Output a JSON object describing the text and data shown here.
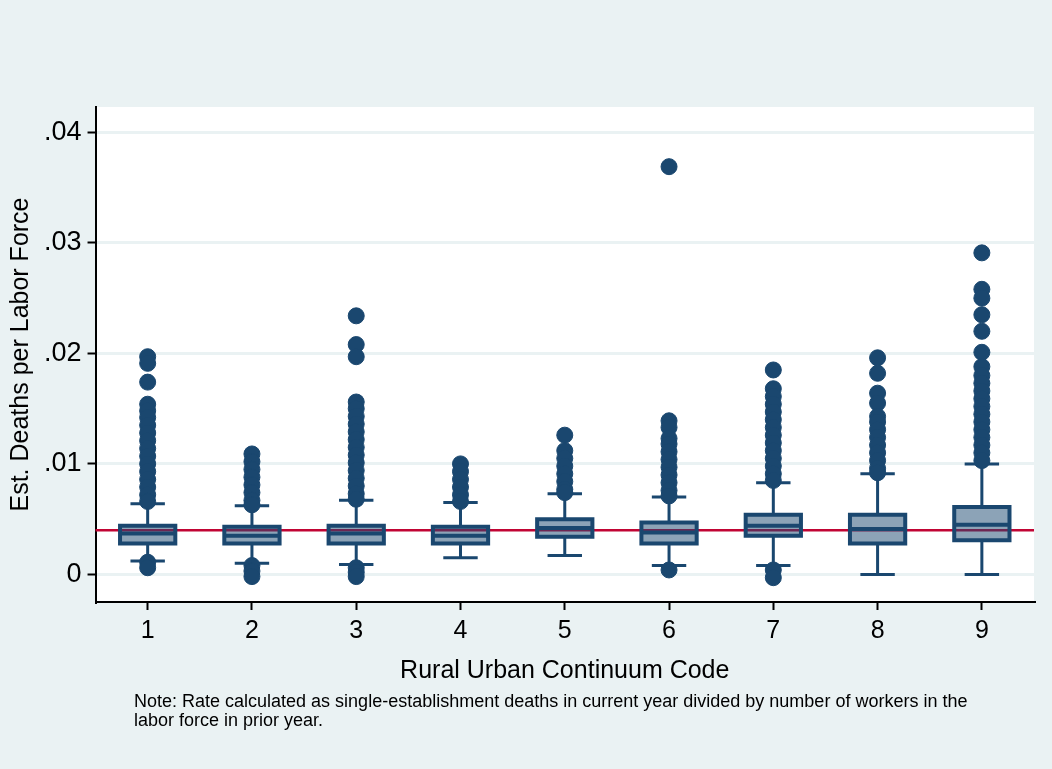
{
  "chart_data": {
    "type": "box",
    "xlabel": "Rural Urban Continuum Code",
    "ylabel": "Est. Deaths per Labor Force",
    "categories": [
      "1",
      "2",
      "3",
      "4",
      "5",
      "6",
      "7",
      "8",
      "9"
    ],
    "color": "#1a476f",
    "boxes": [
      {
        "low": 0.0012,
        "q1": 0.0028,
        "median": 0.0037,
        "q3": 0.0044,
        "high": 0.0064,
        "outliers": [
          0.0197,
          0.0191,
          0.0174,
          0.0154,
          0.0148,
          0.0142,
          0.0135,
          0.0128,
          0.0121,
          0.0114,
          0.0107,
          0.01,
          0.0093,
          0.0086,
          0.0079,
          0.0072,
          0.0066,
          0.0011,
          0.0006
        ]
      },
      {
        "low": 0.001,
        "q1": 0.0028,
        "median": 0.0035,
        "q3": 0.0043,
        "high": 0.0062,
        "outliers": [
          0.0109,
          0.0102,
          0.0095,
          0.0088,
          0.0081,
          0.0074,
          0.0067,
          0.0063,
          0.0008,
          0.0003,
          -0.0002
        ]
      },
      {
        "low": 0.0009,
        "q1": 0.0028,
        "median": 0.0037,
        "q3": 0.0044,
        "high": 0.0067,
        "outliers": [
          0.0234,
          0.0208,
          0.0197,
          0.0156,
          0.015,
          0.0143,
          0.0136,
          0.0129,
          0.0122,
          0.0115,
          0.0108,
          0.0101,
          0.0094,
          0.0087,
          0.008,
          0.0073,
          0.0068,
          0.0006,
          0.0002,
          -0.0002
        ]
      },
      {
        "low": 0.0015,
        "q1": 0.0028,
        "median": 0.0035,
        "q3": 0.0043,
        "high": 0.0065,
        "outliers": [
          0.01,
          0.0093,
          0.0086,
          0.0079,
          0.0072,
          0.0066
        ]
      },
      {
        "low": 0.0017,
        "q1": 0.0034,
        "median": 0.0042,
        "q3": 0.005,
        "high": 0.0073,
        "outliers": [
          0.0126,
          0.0112,
          0.0105,
          0.0098,
          0.0091,
          0.0084,
          0.0077,
          0.0074
        ]
      },
      {
        "low": 0.0008,
        "q1": 0.0028,
        "median": 0.0038,
        "q3": 0.0047,
        "high": 0.007,
        "outliers": [
          0.0369,
          0.0139,
          0.0133,
          0.0123,
          0.0118,
          0.0111,
          0.0104,
          0.0097,
          0.009,
          0.0083,
          0.0076,
          0.0071,
          0.0004
        ]
      },
      {
        "low": 0.0008,
        "q1": 0.0035,
        "median": 0.0044,
        "q3": 0.0054,
        "high": 0.0083,
        "outliers": [
          0.0185,
          0.0168,
          0.0161,
          0.0154,
          0.0147,
          0.014,
          0.0133,
          0.0126,
          0.0119,
          0.0112,
          0.0105,
          0.0098,
          0.0091,
          0.0085,
          0.0004,
          -0.0003
        ]
      },
      {
        "low": 0,
        "q1": 0.0028,
        "median": 0.0041,
        "q3": 0.0054,
        "high": 0.0091,
        "outliers": [
          0.0196,
          0.0182,
          0.0164,
          0.0155,
          0.0143,
          0.0138,
          0.0131,
          0.0124,
          0.0117,
          0.011,
          0.0103,
          0.0096,
          0.0092
        ]
      },
      {
        "low": 0,
        "q1": 0.0031,
        "median": 0.0045,
        "q3": 0.0061,
        "high": 0.01,
        "outliers": [
          0.0291,
          0.0258,
          0.025,
          0.0235,
          0.022,
          0.0201,
          0.0188,
          0.018,
          0.0173,
          0.0166,
          0.0159,
          0.0152,
          0.0145,
          0.0138,
          0.0131,
          0.0124,
          0.0117,
          0.011,
          0.0103
        ]
      }
    ],
    "ylim": [
      -0.0025,
      0.0423
    ],
    "yticks": [
      0,
      {
        "value": 0.01,
        "label": ".01"
      },
      {
        "value": 0.02,
        "label": ".02"
      },
      {
        "value": 0.03,
        "label": ".03"
      },
      {
        "value": 0.04,
        "label": ".04"
      }
    ],
    "grid": "y",
    "legend": false,
    "ref_lines": [
      {
        "axis": "y",
        "value": 0.004,
        "color": "#c10534"
      }
    ],
    "annotations": [
      "Note: Rate calculated as single-establishment deaths in current year divided by number of workers in the labor force in prior year."
    ]
  }
}
